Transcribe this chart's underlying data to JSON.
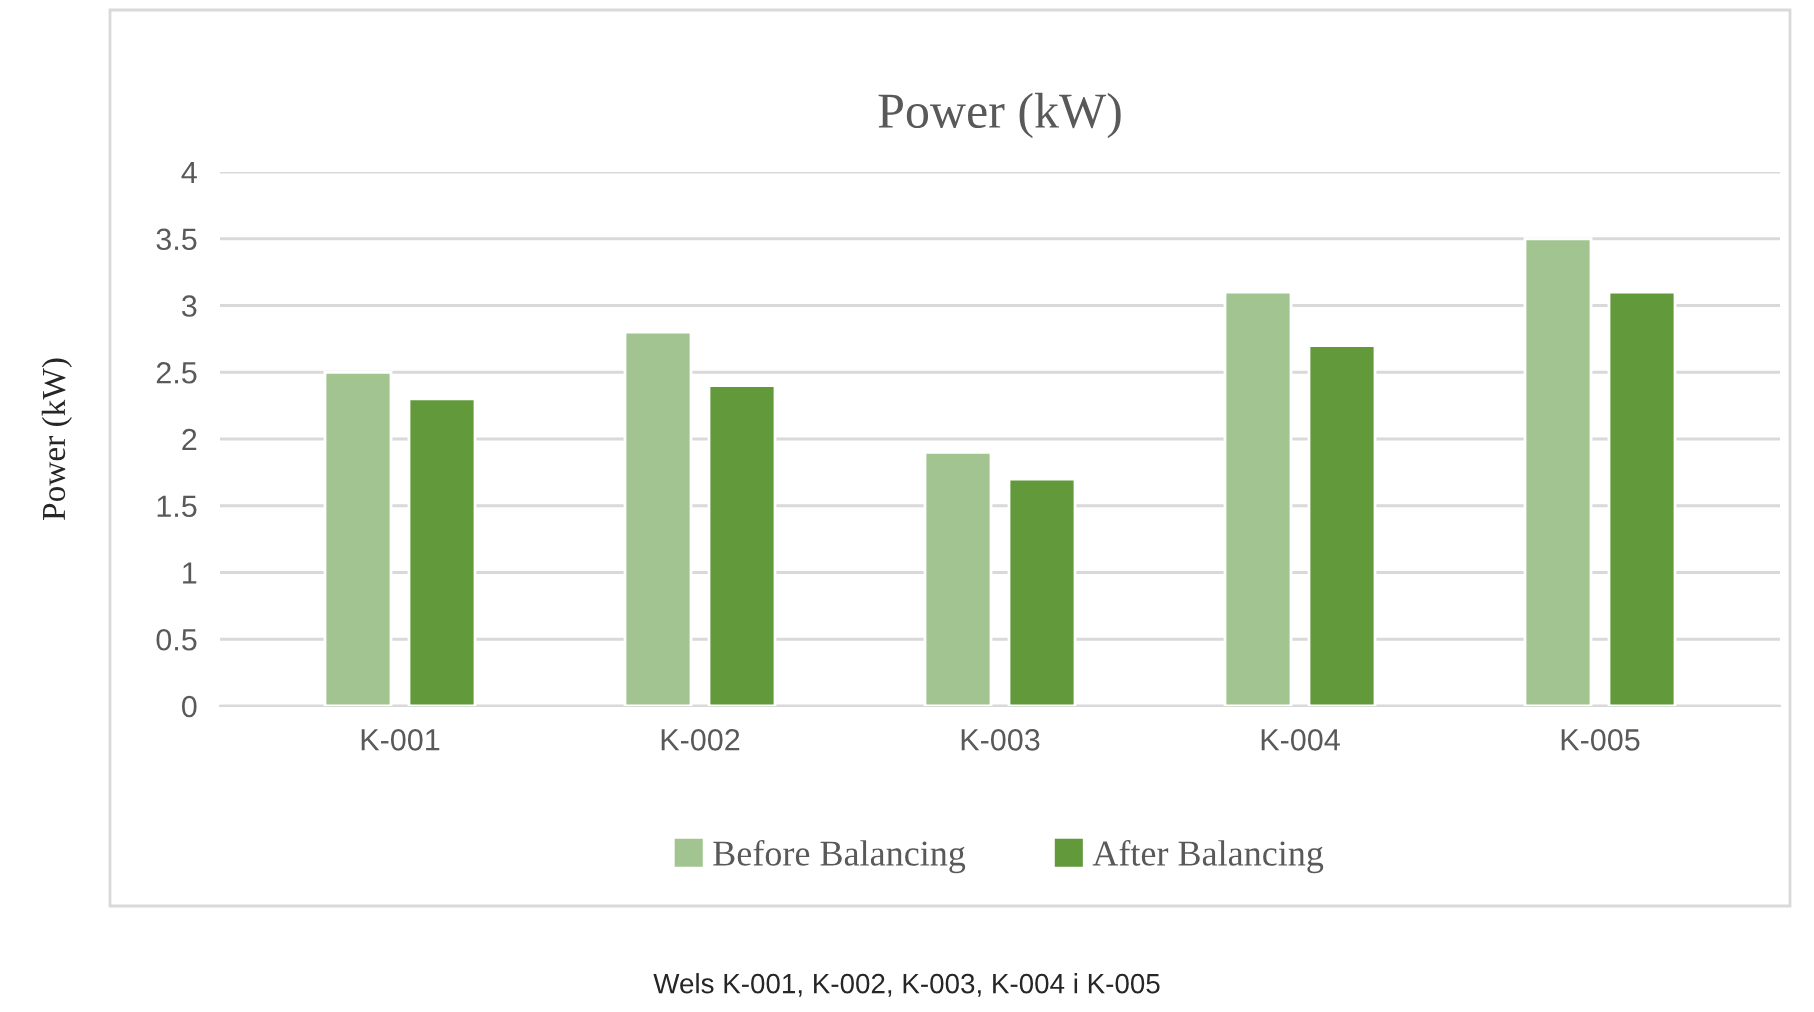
{
  "chart_data": {
    "type": "bar",
    "title": "Power (kW)",
    "ylabel": "Power (kW)",
    "categories": [
      "K-001",
      "K-002",
      "K-003",
      "K-004",
      "K-005"
    ],
    "series": [
      {
        "name": "Before Balancing",
        "color": "#a1c490",
        "values": [
          2.5,
          2.8,
          1.9,
          3.1,
          3.5
        ]
      },
      {
        "name": "After Balancing",
        "color": "#62993b",
        "values": [
          2.3,
          2.4,
          1.7,
          2.7,
          3.1
        ]
      }
    ],
    "ylim": [
      0,
      4
    ],
    "yticks": [
      0,
      0.5,
      1,
      1.5,
      2,
      2.5,
      3,
      3.5,
      4
    ],
    "grid": "y",
    "legend": "bottom",
    "annotations": [
      "Wels K-001, K-002, K-003, K-004 i K-005"
    ]
  }
}
